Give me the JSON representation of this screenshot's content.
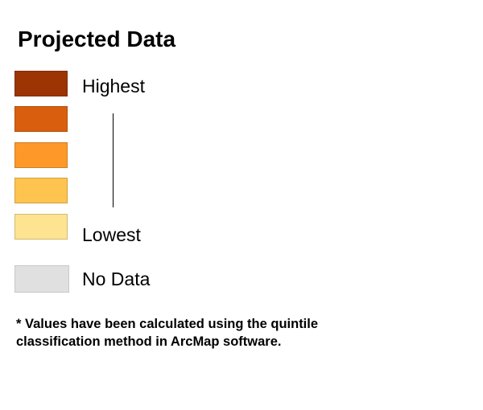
{
  "legend": {
    "title": "Projected Data",
    "swatches": [
      {
        "color": "#9c3503"
      },
      {
        "color": "#d95f0e"
      },
      {
        "color": "#fe9929"
      },
      {
        "color": "#fec44f"
      },
      {
        "color": "#fee391"
      }
    ],
    "labels": {
      "highest": "Highest",
      "lowest": "Lowest",
      "no_data": "No Data"
    },
    "no_data_color": "#e0e0e0"
  },
  "footnote": {
    "line1": "* Values have been calculated using the quintile",
    "line2": "classification method in ArcMap software."
  }
}
